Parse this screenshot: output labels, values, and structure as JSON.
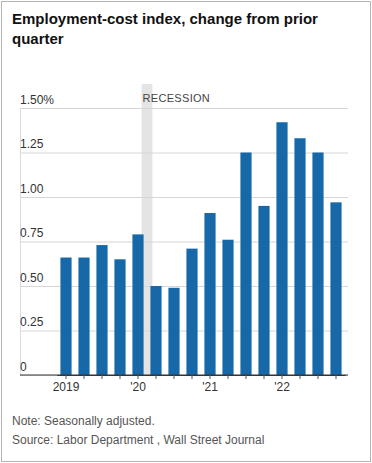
{
  "chart_data": {
    "type": "bar",
    "title": "Employment-cost index, change from prior quarter",
    "categories": [
      "2019",
      null,
      null,
      null,
      "'20",
      null,
      null,
      null,
      "'21",
      null,
      null,
      null,
      "'22",
      null,
      null,
      null
    ],
    "values": [
      0.66,
      0.66,
      0.73,
      0.65,
      0.79,
      0.5,
      0.49,
      0.71,
      0.91,
      0.76,
      1.25,
      0.95,
      1.42,
      1.33,
      1.25,
      0.97
    ],
    "color": "#1768a8",
    "ylim": [
      0,
      1.5
    ],
    "yticks": [
      0,
      {
        "value": 0.25,
        "label": "0.25"
      },
      {
        "value": 0.5,
        "label": "0.50"
      },
      {
        "value": 0.75,
        "label": "0.75"
      },
      {
        "value": 1,
        "label": "1.00"
      },
      {
        "value": 1.25,
        "label": "1.25"
      },
      {
        "value": 1.5,
        "label": "1.50%"
      }
    ],
    "grid": true,
    "annotations": [
      {
        "text": "RECESSION"
      }
    ],
    "notes": [
      "Note: Seasonally adjusted.",
      "Source: Labor Department , Wall Street Journal"
    ]
  }
}
